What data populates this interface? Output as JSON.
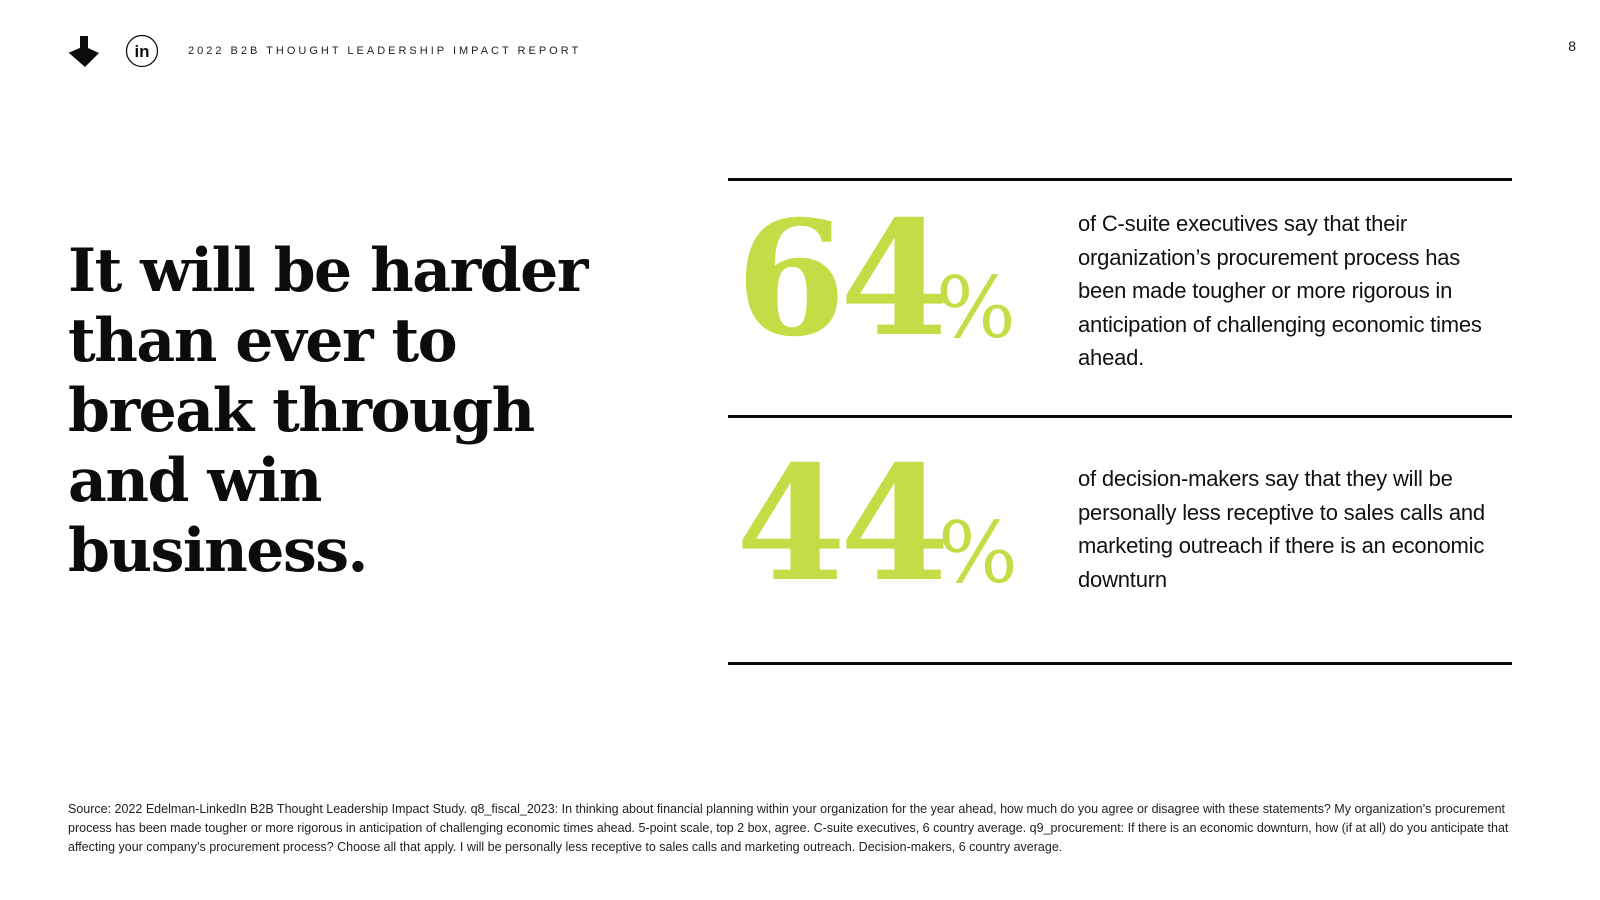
{
  "header": {
    "report_title": "2022 B2B THOUGHT LEADERSHIP IMPACT REPORT",
    "linkedin_logo_text": "in"
  },
  "page_number": "8",
  "headline": "It will be harder than ever to break through and win business.",
  "stats": [
    {
      "number": "64",
      "unit": "%",
      "description": "of C-suite executives say that their organization’s procurement process has been made tougher or more rigorous in anticipation of challenging economic times ahead."
    },
    {
      "number": "44",
      "unit": "%",
      "description": "of decision-makers say that they will be personally less receptive to sales calls and marketing outreach if there is an economic downturn"
    }
  ],
  "source": "Source: 2022 Edelman-LinkedIn B2B Thought Leadership Impact Study. q8_fiscal_2023: In thinking about financial planning within your organization for the year ahead, how much do you agree or disagree with these statements? My organization’s procurement process has been made tougher or more rigorous in anticipation of challenging economic times ahead.  5-point scale, top 2 box, agree. C-suite executives, 6 country average. q9_procurement: If there is an economic downturn, how (if at all) do you anticipate that affecting your company’s procurement process? Choose all that apply. I will be personally less receptive to sales calls and marketing outreach. Decision-makers, 6 country average.",
  "colors": {
    "accent": "#c4dd46",
    "text": "#111111",
    "background": "#ffffff"
  },
  "icons": {
    "brand_logo": "edelman-arrow-icon",
    "partner_logo": "linkedin-icon"
  }
}
